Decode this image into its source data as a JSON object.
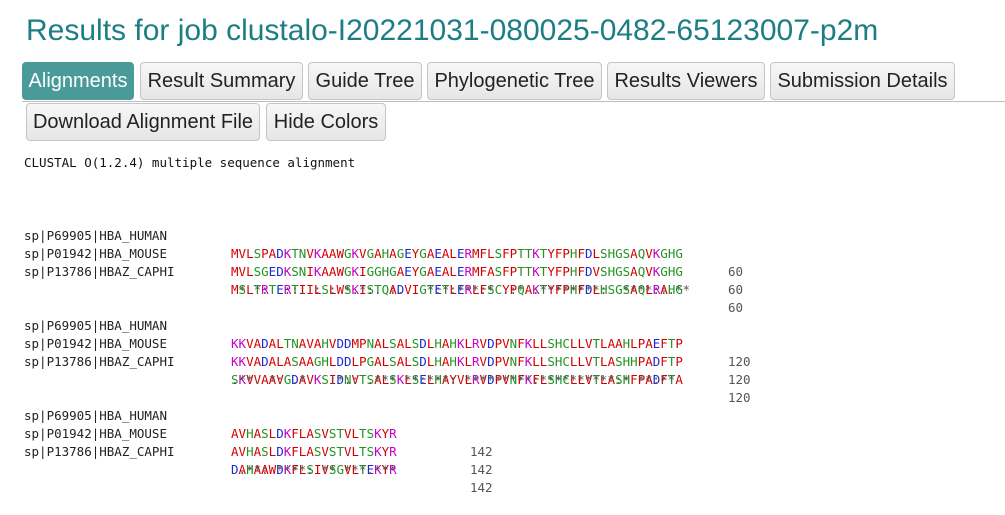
{
  "title": "Results for job clustalo-I20221031-080025-0482-65123007-p2m",
  "tabs": [
    {
      "label": "Alignments",
      "active": true
    },
    {
      "label": "Result Summary",
      "active": false
    },
    {
      "label": "Guide Tree",
      "active": false
    },
    {
      "label": "Phylogenetic Tree",
      "active": false
    },
    {
      "label": "Results Viewers",
      "active": false
    },
    {
      "label": "Submission Details",
      "active": false
    }
  ],
  "actions": {
    "download_label": "Download Alignment File",
    "hide_colors_label": "Hide Colors"
  },
  "alignment": {
    "header": "CLUSTAL O(1.2.4) multiple sequence alignment",
    "colors": {
      "small_hydrophobic": "#d40000",
      "acidic": "#1a2bd4",
      "basic": "#c800c8",
      "hydroxyl_amine": "#229422",
      "other": "#666666"
    },
    "blocks": [
      {
        "rows": [
          {
            "name": "sp|P69905|HBA_HUMAN",
            "seq": "MVLSPADKTNVKAAWGKVGAHAGEYGAEALERMFLSFPTTKTYFPHFDLSHGSAQVKGHG",
            "pos": "60"
          },
          {
            "name": "sp|P01942|HBA_MOUSE",
            "seq": "MVLSGEDKSNIKAAWGKIGGHGAEYGAEALERMFASFPTTKTYFPHFDVSHGSAQVKGHG",
            "pos": "60"
          },
          {
            "name": "sp|P13786|HBAZ_CAPHI",
            "seq": "MSLTRTERTIILSLWSKISTQADVIGTETLERLFSCYPQAKTYFPHFDLHSGSAQLRAHG",
            "pos": "60"
          }
        ],
        "consensus": " * *:  ::: : : *.*:. :.   *:*:***:* .:* :********:  ****::.**"
      },
      {
        "rows": [
          {
            "name": "sp|P69905|HBA_HUMAN",
            "seq": "KKVADALTNAVAHVDDMPNALSALSDLHAHKLRVDPVNFKLLSHCLLVTLAAHLPAEFTP",
            "pos": "120"
          },
          {
            "name": "sp|P01942|HBA_MOUSE",
            "seq": "KKVADALASAAGHLDDLPGALSALSDLHAHKLRVDPVNFKLLSHCLLVTLASHHPADFTP",
            "pos": "120"
          },
          {
            "name": "sp|P13786|HBAZ_CAPHI",
            "seq": "SKVVAAVGDAVKSIDNVTSALSKLSELHAYVLRVDPVNFKFLSHCLLVTLASHFPADFTA",
            "pos": "120"
          }
        ],
        "consensus": ".**. *: .*.  :*:: .*** **:***: *********:**********:* **:**"
      },
      {
        "rows": [
          {
            "name": "sp|P69905|HBA_HUMAN",
            "seq": "AVHASLDKFLASVSTVLTSKYR",
            "pos": "142"
          },
          {
            "name": "sp|P01942|HBA_MOUSE",
            "seq": "AVHASLDKFLASVSTVLTSKYR",
            "pos": "142"
          },
          {
            "name": "sp|P13786|HBAZ_CAPHI",
            "seq": "DAHAAWDKFLSIVSGVLTEKYR",
            "pos": "142"
          }
        ],
        "consensus": " .**: ****: ** ***.***"
      }
    ]
  }
}
